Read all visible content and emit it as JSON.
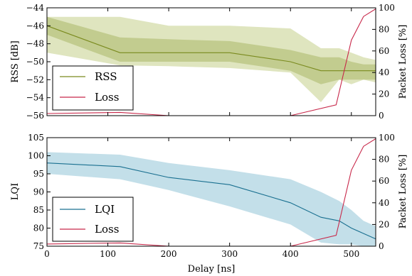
{
  "chart_data": [
    {
      "type": "line",
      "xlabel": "",
      "ylabel": "RSS [dB]",
      "y2label": "Packet Loss [%]",
      "xlim": [
        0,
        540
      ],
      "ylim": [
        -56,
        -44
      ],
      "y2lim": [
        0,
        100
      ],
      "yticks": [
        "−56",
        "−54",
        "−52",
        "−50",
        "−48",
        "−46",
        "−44"
      ],
      "y2ticks": [
        "0",
        "20",
        "40",
        "60",
        "80",
        "100"
      ],
      "xticks": [],
      "legend_position": "bottom-left",
      "series": [
        {
          "name": "RSS",
          "axis": "left",
          "color": "#7a8a1e",
          "x": [
            0,
            120,
            200,
            300,
            400,
            450,
            480,
            500,
            520,
            540
          ],
          "y": [
            -46,
            -49,
            -49,
            -49,
            -50,
            -51,
            -51,
            -51,
            -51,
            -51
          ],
          "band_inner": [
            [
              -47,
              -45
            ],
            [
              -50,
              -47.3
            ],
            [
              -50,
              -47.5
            ],
            [
              -50,
              -47.7
            ],
            [
              -51,
              -48.7
            ],
            [
              -52.5,
              -49.5
            ],
            [
              -52,
              -49.5
            ],
            [
              -52,
              -50
            ],
            [
              -52,
              -50.3
            ],
            [
              -52,
              -50.3
            ]
          ],
          "band_outer": [
            [
              -49,
              -45
            ],
            [
              -50.4,
              -45
            ],
            [
              -50.5,
              -46
            ],
            [
              -50.7,
              -46
            ],
            [
              -51.2,
              -46.3
            ],
            [
              -54.5,
              -48.5
            ],
            [
              -52,
              -48.5
            ],
            [
              -52.5,
              -49
            ],
            [
              -52,
              -49.5
            ],
            [
              -52.3,
              -49.8
            ]
          ]
        },
        {
          "name": "Loss",
          "axis": "right",
          "color": "#c8284a",
          "x": [
            0,
            120,
            200,
            300,
            400,
            475,
            500,
            520,
            540
          ],
          "y": [
            2,
            3,
            0,
            0,
            0,
            10,
            70,
            92,
            99
          ]
        }
      ]
    },
    {
      "type": "line",
      "xlabel": "Delay [ns]",
      "ylabel": "LQI",
      "y2label": "Packet Loss [%]",
      "xlim": [
        0,
        540
      ],
      "ylim": [
        75,
        105
      ],
      "y2lim": [
        0,
        100
      ],
      "yticks": [
        "75",
        "80",
        "85",
        "90",
        "95",
        "100",
        "105"
      ],
      "y2ticks": [
        "0",
        "20",
        "40",
        "60",
        "80",
        "100"
      ],
      "xticks": [
        "0",
        "100",
        "200",
        "300",
        "400",
        "500"
      ],
      "legend_position": "bottom-left",
      "series": [
        {
          "name": "LQI",
          "axis": "left",
          "color": "#1a7090",
          "x": [
            0,
            120,
            200,
            300,
            400,
            450,
            480,
            500,
            520,
            540
          ],
          "y": [
            98,
            97,
            94,
            92,
            87,
            83,
            82,
            80,
            78.5,
            77
          ],
          "band": [
            [
              95,
              101
            ],
            [
              93.5,
              100.3
            ],
            [
              90.5,
              98
            ],
            [
              86,
              96
            ],
            [
              81,
              93.5
            ],
            [
              76,
              90
            ],
            [
              75.5,
              87.5
            ],
            [
              75.5,
              85
            ],
            [
              75,
              82
            ],
            [
              75,
              80.5
            ]
          ]
        },
        {
          "name": "Loss",
          "axis": "right",
          "color": "#c8284a",
          "x": [
            0,
            120,
            200,
            300,
            400,
            475,
            500,
            520,
            540
          ],
          "y": [
            2,
            3,
            0,
            0,
            0,
            10,
            70,
            92,
            99
          ]
        }
      ]
    }
  ]
}
